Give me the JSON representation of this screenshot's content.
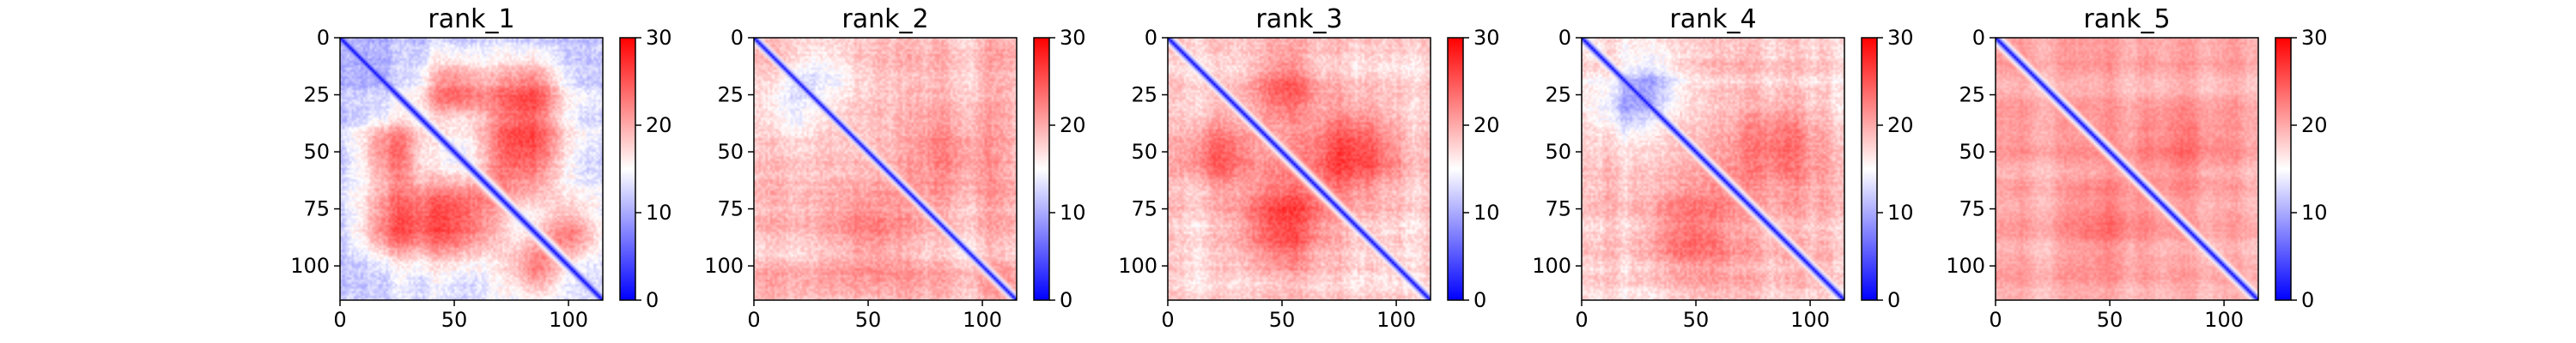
{
  "chart_data": [
    {
      "type": "heatmap",
      "title": "rank_1",
      "matrix_size": 115,
      "x_ticks": [
        0,
        50,
        100
      ],
      "y_ticks": [
        0,
        25,
        50,
        75,
        100
      ],
      "xlim": [
        0,
        115
      ],
      "ylim": [
        115,
        0
      ],
      "colorbar": {
        "ticks": [
          0,
          10,
          20,
          30
        ],
        "range": [
          0,
          30
        ],
        "colormap": "bwr",
        "colors": [
          "#0000ff",
          "#ffffff",
          "#ff0000"
        ]
      },
      "pattern": {
        "diag_width": 4.5,
        "bg": 11,
        "bump_scale": 1.0,
        "noise": 3
      },
      "blobs": [
        {
          "cx": 80,
          "cy": 50,
          "r": 14,
          "v": 14
        },
        {
          "cx": 50,
          "cy": 80,
          "r": 14,
          "v": 14
        },
        {
          "cx": 22,
          "cy": 50,
          "r": 11,
          "v": 12
        },
        {
          "cx": 50,
          "cy": 22,
          "r": 11,
          "v": 12
        },
        {
          "cx": 22,
          "cy": 82,
          "r": 11,
          "v": 11
        },
        {
          "cx": 82,
          "cy": 22,
          "r": 11,
          "v": 11
        },
        {
          "cx": 100,
          "cy": 85,
          "r": 9,
          "v": 10
        },
        {
          "cx": 85,
          "cy": 100,
          "r": 9,
          "v": 10
        }
      ]
    },
    {
      "type": "heatmap",
      "title": "rank_2",
      "matrix_size": 115,
      "x_ticks": [
        0,
        50,
        100
      ],
      "y_ticks": [
        0,
        25,
        50,
        75,
        100
      ],
      "xlim": [
        0,
        115
      ],
      "ylim": [
        115,
        0
      ],
      "colorbar": {
        "ticks": [
          0,
          10,
          20,
          30
        ],
        "range": [
          0,
          30
        ],
        "colormap": "bwr",
        "colors": [
          "#0000ff",
          "#ffffff",
          "#ff0000"
        ]
      },
      "pattern": {
        "diag_width": 3.5,
        "bg": 19,
        "bump_scale": 0.5,
        "noise": 3
      },
      "blobs": [
        {
          "cx": 85,
          "cy": 50,
          "r": 14,
          "v": 7
        },
        {
          "cx": 50,
          "cy": 85,
          "r": 14,
          "v": 7
        },
        {
          "cx": 30,
          "cy": 15,
          "r": 10,
          "v": -8
        },
        {
          "cx": 15,
          "cy": 30,
          "r": 10,
          "v": -8
        }
      ]
    },
    {
      "type": "heatmap",
      "title": "rank_3",
      "matrix_size": 115,
      "x_ticks": [
        0,
        50,
        100
      ],
      "y_ticks": [
        0,
        25,
        50,
        75,
        100
      ],
      "xlim": [
        0,
        115
      ],
      "ylim": [
        115,
        0
      ],
      "colorbar": {
        "ticks": [
          0,
          10,
          20,
          30
        ],
        "range": [
          0,
          30
        ],
        "colormap": "bwr",
        "colors": [
          "#0000ff",
          "#ffffff",
          "#ff0000"
        ]
      },
      "pattern": {
        "diag_width": 4,
        "bg": 18,
        "bump_scale": 1.0,
        "noise": 3
      },
      "blobs": [
        {
          "cx": 80,
          "cy": 50,
          "r": 14,
          "v": 8
        },
        {
          "cx": 50,
          "cy": 80,
          "r": 14,
          "v": 8
        },
        {
          "cx": 22,
          "cy": 50,
          "r": 11,
          "v": 6
        },
        {
          "cx": 50,
          "cy": 22,
          "r": 11,
          "v": 6
        }
      ]
    },
    {
      "type": "heatmap",
      "title": "rank_4",
      "matrix_size": 115,
      "x_ticks": [
        0,
        50,
        100
      ],
      "y_ticks": [
        0,
        25,
        50,
        75,
        100
      ],
      "xlim": [
        0,
        115
      ],
      "ylim": [
        115,
        0
      ],
      "colorbar": {
        "ticks": [
          0,
          10,
          20,
          30
        ],
        "range": [
          0,
          30
        ],
        "colormap": "bwr",
        "colors": [
          "#0000ff",
          "#ffffff",
          "#ff0000"
        ]
      },
      "pattern": {
        "diag_width": 4,
        "bg": 18,
        "bump_scale": 0.8,
        "noise": 3
      },
      "blobs": [
        {
          "cx": 85,
          "cy": 45,
          "r": 13,
          "v": 6
        },
        {
          "cx": 45,
          "cy": 85,
          "r": 13,
          "v": 6
        },
        {
          "cx": 30,
          "cy": 20,
          "r": 8,
          "v": -6
        },
        {
          "cx": 20,
          "cy": 30,
          "r": 8,
          "v": -6
        }
      ]
    },
    {
      "type": "heatmap",
      "title": "rank_5",
      "matrix_size": 115,
      "x_ticks": [
        0,
        50,
        100
      ],
      "y_ticks": [
        0,
        25,
        50,
        75,
        100
      ],
      "xlim": [
        0,
        115
      ],
      "ylim": [
        115,
        0
      ],
      "colorbar": {
        "ticks": [
          0,
          10,
          20,
          30
        ],
        "range": [
          0,
          30
        ],
        "colormap": "bwr",
        "colors": [
          "#0000ff",
          "#ffffff",
          "#ff0000"
        ]
      },
      "pattern": {
        "diag_width": 4,
        "bg": 20,
        "bump_scale": 0.5,
        "noise": 2
      },
      "blobs": [
        {
          "cx": 80,
          "cy": 50,
          "r": 14,
          "v": 5
        },
        {
          "cx": 50,
          "cy": 80,
          "r": 14,
          "v": 5
        }
      ]
    }
  ]
}
